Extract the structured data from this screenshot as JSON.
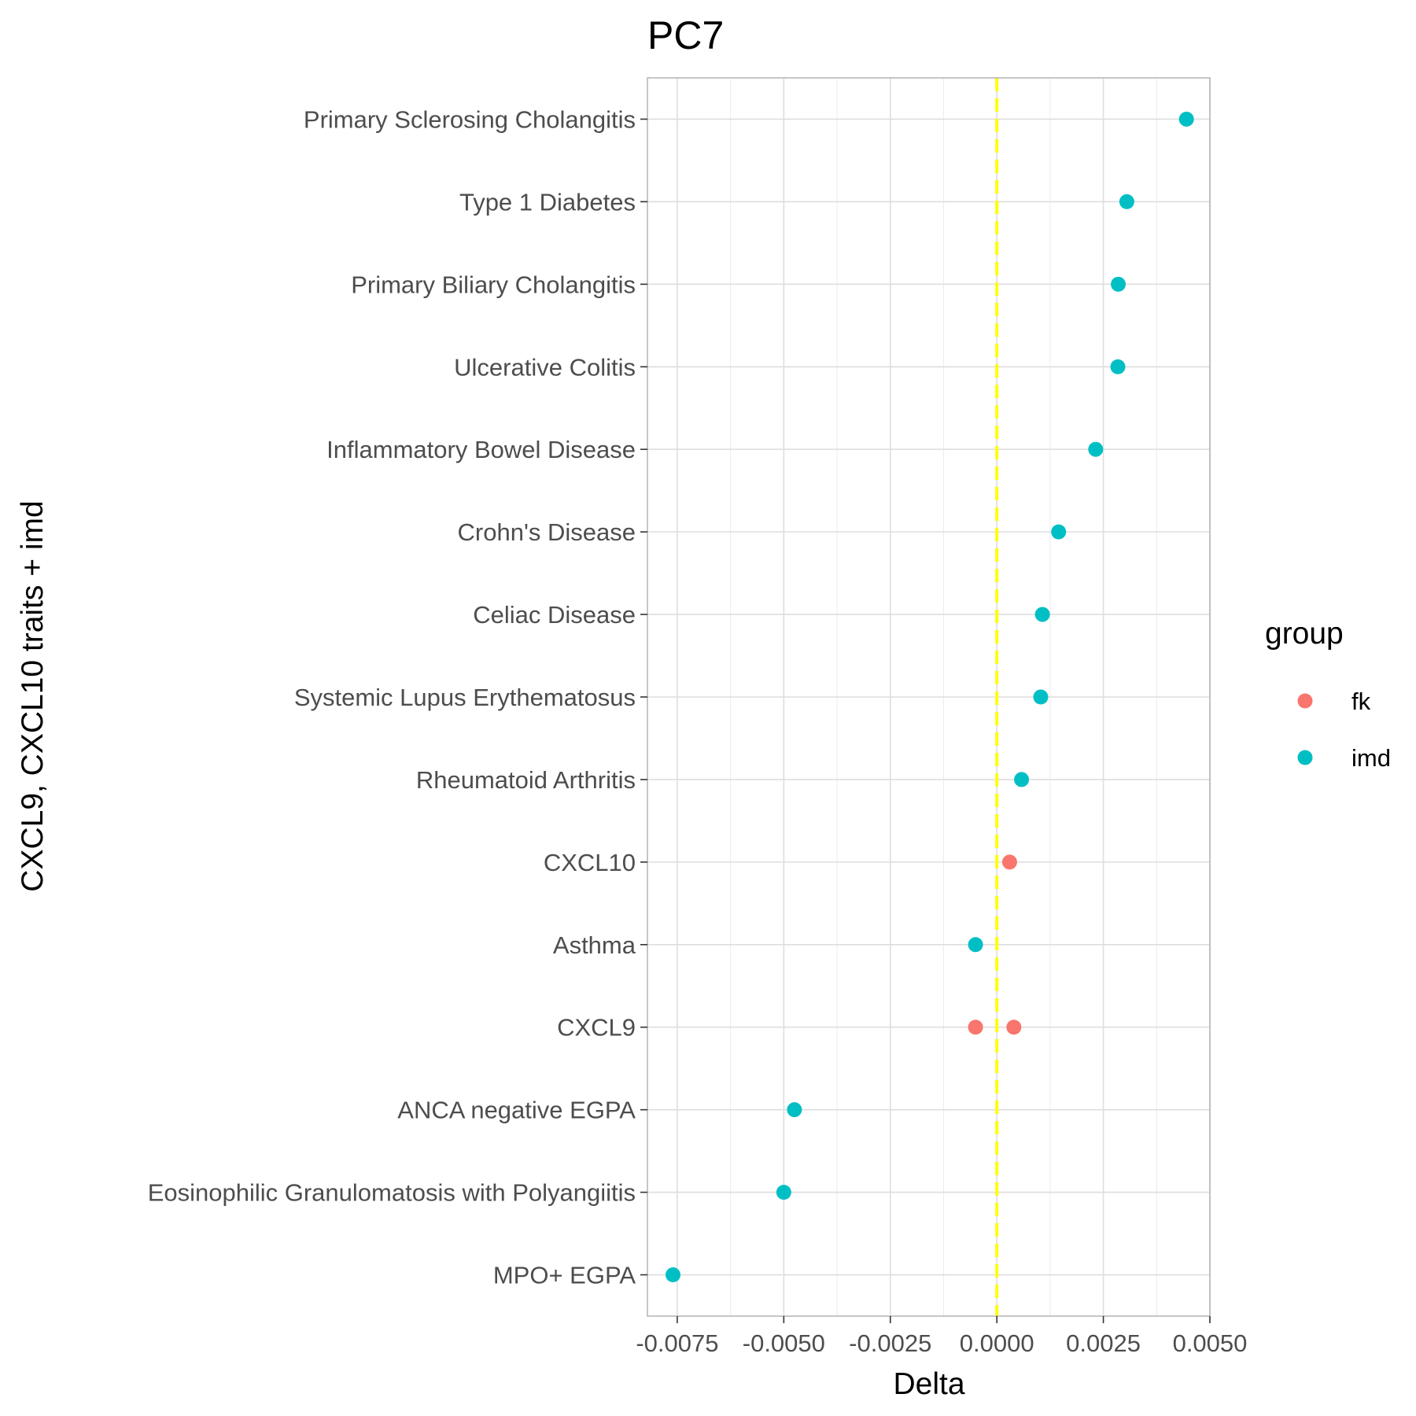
{
  "chart_data": {
    "type": "scatter",
    "title": "PC7",
    "xlabel": "Delta",
    "ylabel": "CXCL9, CXCL10 traits + imd",
    "xlim": [
      -0.0082,
      0.005
    ],
    "x_ticks": [
      "-0.0075",
      "-0.0050",
      "-0.0025",
      "0.0000",
      "0.0025",
      "0.0050"
    ],
    "reference_line": {
      "x": 0,
      "style": "dashed",
      "color": "#ffff00"
    },
    "categories": [
      "Primary Sclerosing Cholangitis",
      "Type 1 Diabetes",
      "Primary Biliary Cholangitis",
      "Ulcerative Colitis",
      "Inflammatory Bowel Disease",
      "Crohn's Disease",
      "Celiac Disease",
      "Systemic Lupus Erythematosus",
      "Rheumatoid Arthritis",
      "CXCL10",
      "Asthma",
      "CXCL9",
      "ANCA negative EGPA",
      "Eosinophilic Granulomatosis with Polyangiitis",
      "MPO+ EGPA"
    ],
    "series": [
      {
        "name": "fk",
        "color": "#f8766d",
        "points": [
          {
            "category": "CXCL10",
            "x": 0.0003
          },
          {
            "category": "CXCL9",
            "x": -0.0005
          },
          {
            "category": "CXCL9",
            "x": 0.0004
          }
        ]
      },
      {
        "name": "imd",
        "color": "#00bfc4",
        "points": [
          {
            "category": "Primary Sclerosing Cholangitis",
            "x": 0.00445
          },
          {
            "category": "Type 1 Diabetes",
            "x": 0.00305
          },
          {
            "category": "Primary Biliary Cholangitis",
            "x": 0.00285
          },
          {
            "category": "Ulcerative Colitis",
            "x": 0.00284
          },
          {
            "category": "Inflammatory Bowel Disease",
            "x": 0.00232
          },
          {
            "category": "Crohn's Disease",
            "x": 0.00145
          },
          {
            "category": "Celiac Disease",
            "x": 0.00107
          },
          {
            "category": "Systemic Lupus Erythematosus",
            "x": 0.00103
          },
          {
            "category": "Rheumatoid Arthritis",
            "x": 0.00058
          },
          {
            "category": "Asthma",
            "x": -0.0005
          },
          {
            "category": "ANCA negative EGPA",
            "x": -0.00475
          },
          {
            "category": "Eosinophilic Granulomatosis with Polyangiitis",
            "x": -0.005
          },
          {
            "category": "MPO+ EGPA",
            "x": -0.0076
          }
        ]
      }
    ],
    "legend": {
      "title": "group",
      "position": "right"
    },
    "grid": true
  }
}
